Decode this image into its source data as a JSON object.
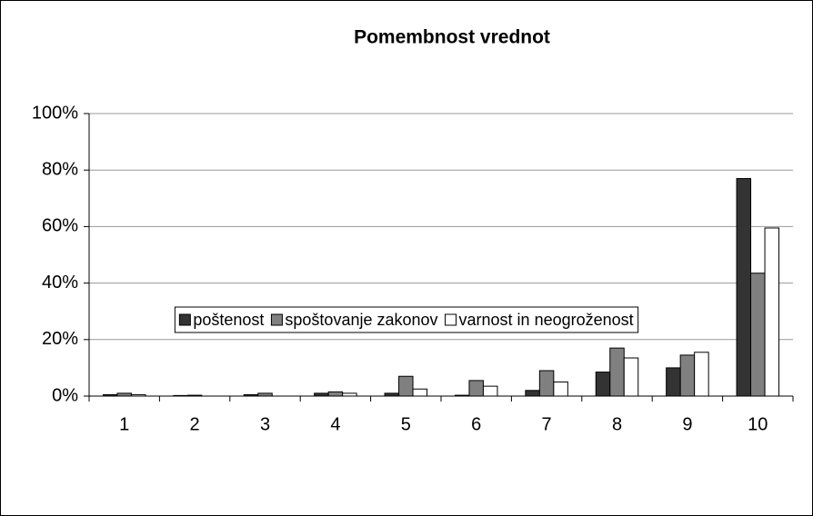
{
  "chart_data": {
    "type": "bar",
    "title": "Pomembnost vrednot",
    "categories": [
      "1",
      "2",
      "3",
      "4",
      "5",
      "6",
      "7",
      "8",
      "9",
      "10"
    ],
    "series": [
      {
        "name": "poštenost",
        "color": "#333333",
        "values": [
          0.5,
          0.2,
          0.5,
          1,
          1,
          0.3,
          2,
          8.5,
          10,
          77
        ]
      },
      {
        "name": "spoštovanje zakonov",
        "color": "#808080",
        "values": [
          1,
          0.3,
          1,
          1.5,
          7,
          5.5,
          9,
          17,
          14.5,
          43.5
        ]
      },
      {
        "name": "varnost in neogroženost",
        "color": "#ffffff",
        "values": [
          0.5,
          0,
          0,
          1,
          2.5,
          3.5,
          5,
          13.5,
          15.5,
          59.5
        ]
      }
    ],
    "ylim": [
      0,
      100
    ],
    "yticks": [
      {
        "value": 0,
        "label": "0%"
      },
      {
        "value": 20,
        "label": "20%"
      },
      {
        "value": 40,
        "label": "40%"
      },
      {
        "value": 60,
        "label": "60%"
      },
      {
        "value": 80,
        "label": "80%"
      },
      {
        "value": 100,
        "label": "100%"
      }
    ],
    "grid": true,
    "legend": "bottom"
  }
}
